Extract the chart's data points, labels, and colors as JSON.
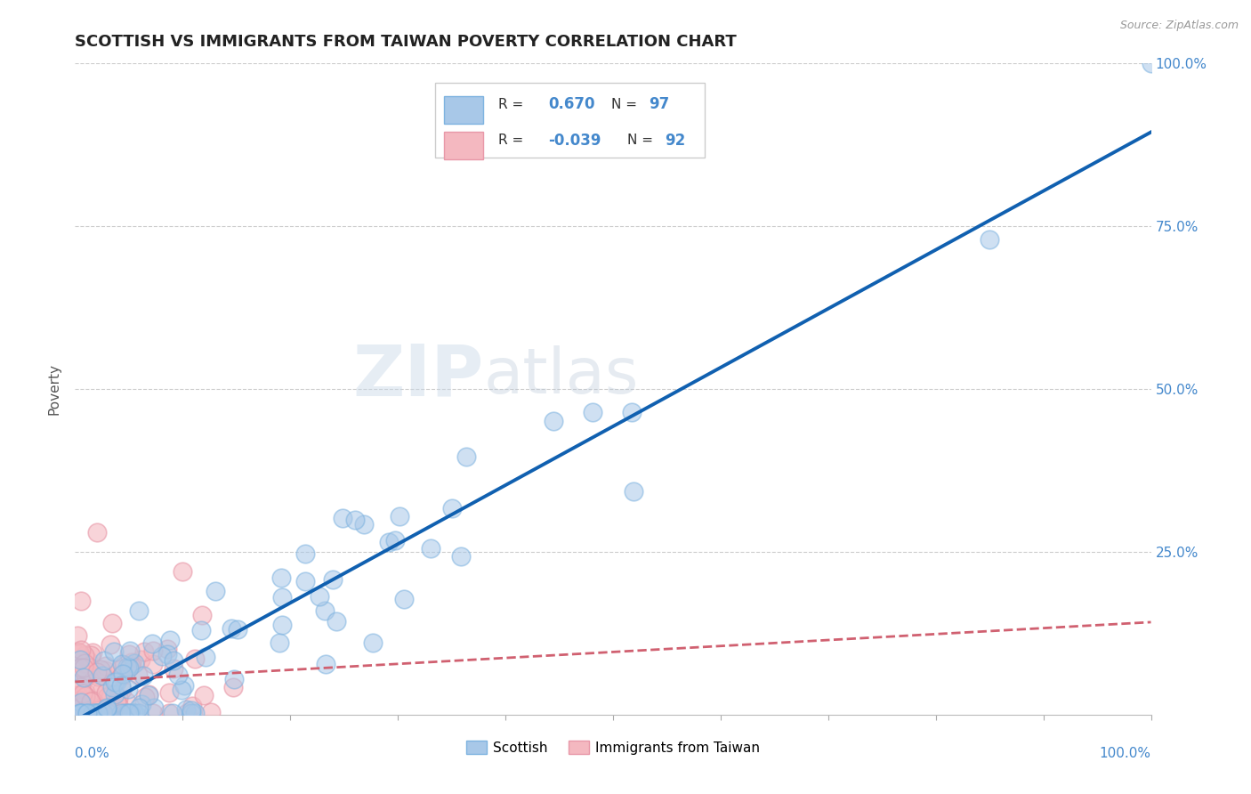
{
  "title": "SCOTTISH VS IMMIGRANTS FROM TAIWAN POVERTY CORRELATION CHART",
  "source": "Source: ZipAtlas.com",
  "ylabel": "Poverty",
  "legend_R1": "0.670",
  "legend_N1": "97",
  "legend_R2": "-0.039",
  "legend_N2": "92",
  "scottish_color": "#A8C8E8",
  "scottish_edge_color": "#7EB3E0",
  "taiwan_color": "#F4B8C0",
  "taiwan_edge_color": "#E898A8",
  "scottish_line_color": "#1060B0",
  "taiwan_line_color": "#D06070",
  "background_color": "#FFFFFF",
  "watermark_color": "#C8D8E8",
  "title_fontsize": 13,
  "tick_color": "#4488CC",
  "grid_color": "#CCCCCC"
}
